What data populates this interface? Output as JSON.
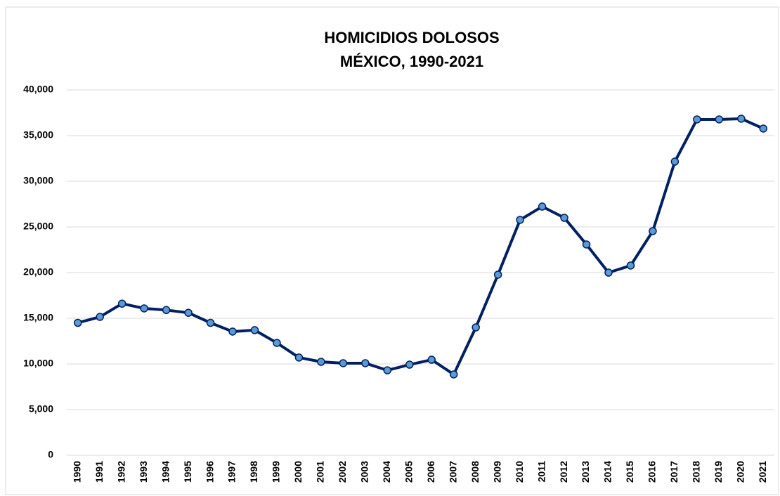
{
  "chart_data": {
    "type": "line",
    "title": [
      "HOMICIDIOS DOLOSOS",
      "MÉXICO, 1990-2021"
    ],
    "categories": [
      "1990",
      "1991",
      "1992",
      "1993",
      "1994",
      "1995",
      "1996",
      "1997",
      "1998",
      "1999",
      "2000",
      "2001",
      "2002",
      "2003",
      "2004",
      "2005",
      "2006",
      "2007",
      "2008",
      "2009",
      "2010",
      "2011",
      "2012",
      "2013",
      "2014",
      "2015",
      "2016",
      "2017",
      "2018",
      "2019",
      "2020",
      "2021"
    ],
    "series": [
      {
        "color": "#002060",
        "marker_color": "#5b9bd5",
        "values": [
          14500,
          15150,
          16600,
          16080,
          15900,
          15600,
          14500,
          13540,
          13700,
          12300,
          10700,
          10230,
          10080,
          10080,
          9300,
          9920,
          10460,
          8850,
          14000,
          19770,
          25770,
          27230,
          26000,
          23080,
          20000,
          20770,
          24540,
          32150,
          36770,
          36770,
          36850,
          35770
        ]
      }
    ],
    "ylim": [
      0,
      40000
    ],
    "yticks": [
      0,
      {
        "value": 5000,
        "label": "5,000"
      },
      {
        "value": 10000,
        "label": "10,000"
      },
      {
        "value": 15000,
        "label": "15,000"
      },
      {
        "value": 20000,
        "label": "20,000"
      },
      {
        "value": 25000,
        "label": "25,000"
      },
      {
        "value": 30000,
        "label": "30,000"
      },
      {
        "value": 35000,
        "label": "35,000"
      },
      {
        "value": 40000,
        "label": "40,000"
      }
    ],
    "grid": true
  }
}
